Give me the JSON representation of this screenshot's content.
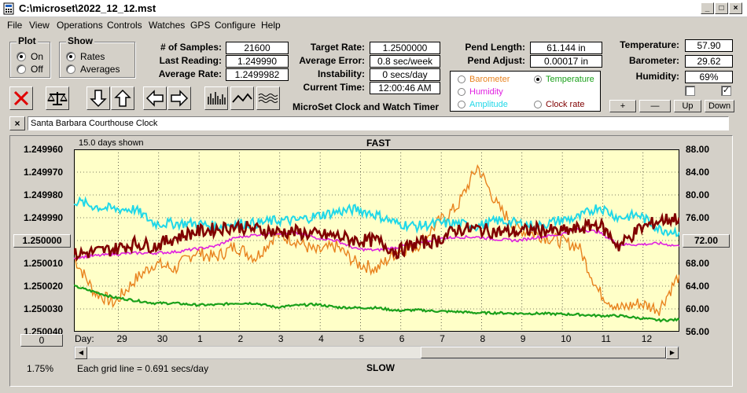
{
  "window": {
    "title": "C:\\microset\\2022_12_12.mst",
    "icon": "app-icon"
  },
  "menu": [
    "File",
    "View",
    "Operations",
    "Controls",
    "Watches",
    "GPS",
    "Configure",
    "Help"
  ],
  "plot": {
    "title": "Plot",
    "options": [
      {
        "label": "On",
        "selected": true
      },
      {
        "label": "Off",
        "selected": false
      }
    ]
  },
  "show": {
    "title": "Show",
    "options": [
      {
        "label": "Rates",
        "selected": true
      },
      {
        "label": "Averages",
        "selected": false
      }
    ]
  },
  "stats": {
    "samples_label": "# of Samples:",
    "samples": "21600",
    "last_reading_label": "Last Reading:",
    "last_reading": "1.249990",
    "average_rate_label": "Average Rate:",
    "average_rate": "1.2499982",
    "target_rate_label": "Target Rate:",
    "target_rate": "1.2500000",
    "average_error_label": "Average Error:",
    "average_error": "0.8 sec/week",
    "instability_label": "Instability:",
    "instability": "0 secs/day",
    "current_time_label": "Current Time:",
    "current_time": "12:00:46 AM",
    "pend_length_label": "Pend Length:",
    "pend_length": "61.144 in",
    "pend_adjust_label": "Pend Adjust:",
    "pend_adjust": "0.00017 in",
    "temperature_label": "Temperature:",
    "temperature": "57.90",
    "barometer_label": "Barometer:",
    "barometer": "29.62",
    "humidity_label": "Humidity:",
    "humidity": "69%"
  },
  "app_subtitle": "MicroSet Clock and Watch Timer",
  "legend": [
    {
      "label": "Barometer",
      "color": "#e8821e",
      "selected": false
    },
    {
      "label": "Temperature",
      "color": "#1aa01a",
      "selected": true
    },
    {
      "label": "Humidity",
      "color": "#e020e0",
      "selected": false
    },
    {
      "label": "Amplitude",
      "color": "#20d8e8",
      "selected": false
    },
    {
      "label": "Clock rate",
      "color": "#800000",
      "selected": false
    }
  ],
  "scale_buttons": [
    "+",
    "—",
    "Up",
    "Down"
  ],
  "checkboxes": [
    false,
    true
  ],
  "clock_name": "Santa Barbara Courthouse Clock",
  "chart": {
    "days_shown": "15.0 days shown",
    "top_label": "FAST",
    "bottom_label": "SLOW",
    "grid_note": "Each grid line = 0.691 secs/day",
    "percent": "1.75%",
    "day_label": "Day:",
    "left_center_button": "1.250000",
    "right_center_button": "72.00",
    "zero_button": "0"
  },
  "chart_data": {
    "type": "line",
    "y_left_ticks": [
      "1.249960",
      "1.249970",
      "1.249980",
      "1.249990",
      "1.250000",
      "1.250010",
      "1.250020",
      "1.250030",
      "1.250040"
    ],
    "y_right_ticks": [
      "88.00",
      "84.00",
      "80.00",
      "76.00",
      "72.00",
      "68.00",
      "64.00",
      "60.00",
      "56.00"
    ],
    "ylim_right": [
      56,
      88
    ],
    "x_ticks": [
      "29",
      "30",
      "1",
      "2",
      "3",
      "4",
      "5",
      "6",
      "7",
      "8",
      "9",
      "10",
      "11",
      "12"
    ],
    "x_tick_positions": [
      1.1,
      2.1,
      3.1,
      4.1,
      5.1,
      6.1,
      7.1,
      8.1,
      9.1,
      10.1,
      11.1,
      12.1,
      13.1,
      14.1
    ],
    "xlim": [
      0,
      15
    ],
    "grid": true,
    "series": [
      {
        "color": "#e8821e",
        "x": [
          0,
          0.5,
          1,
          1.5,
          2,
          2.5,
          3,
          3.5,
          4,
          4.5,
          5,
          5.5,
          6,
          6.5,
          7,
          7.5,
          8,
          8.5,
          9,
          9.5,
          10,
          10.5,
          11,
          11.5,
          12,
          12.5,
          13,
          13.5,
          14,
          14.5,
          15
        ],
        "y": [
          69,
          63,
          61,
          65,
          68,
          67,
          70,
          69,
          71,
          69,
          73,
          72,
          70,
          71,
          68,
          67,
          70,
          71,
          75,
          78,
          85,
          78,
          74,
          73,
          72,
          71,
          63,
          60,
          61,
          60,
          66
        ]
      },
      {
        "color": "#1aa01a",
        "x": [
          0,
          0.5,
          1,
          1.5,
          2,
          2.5,
          3,
          3.5,
          4,
          4.5,
          5,
          5.5,
          6,
          6.5,
          7,
          7.5,
          8,
          8.5,
          9,
          9.5,
          10,
          10.5,
          11,
          11.5,
          12,
          12.5,
          13,
          13.5,
          14,
          14.5,
          15
        ],
        "y": [
          64,
          63,
          62,
          61.5,
          61,
          61,
          60.7,
          60.7,
          61,
          61,
          60.3,
          60.6,
          60.8,
          60.3,
          60.2,
          60.2,
          59.7,
          59.8,
          59.6,
          59.5,
          59.3,
          59.3,
          59.2,
          59.2,
          59.1,
          59,
          58.8,
          58.8,
          58.4,
          58,
          58.1
        ]
      },
      {
        "color": "#e020e0",
        "x": [
          0,
          0.5,
          1,
          1.5,
          2,
          2.5,
          3,
          3.5,
          4,
          4.5,
          5,
          5.5,
          6,
          6.5,
          7,
          7.5,
          8,
          8.5,
          9,
          9.5,
          10,
          10.5,
          11,
          11.5,
          12,
          12.5,
          13,
          13.5,
          14,
          14.5,
          15
        ],
        "y": [
          69,
          69.3,
          69.6,
          69.8,
          69.8,
          70,
          70.5,
          71,
          72.5,
          73,
          73.3,
          73.3,
          72.5,
          72,
          70.5,
          70.3,
          70.8,
          71.5,
          72.3,
          72.6,
          72.6,
          72.2,
          72,
          72.6,
          73,
          74,
          73.5,
          71.3,
          71.3,
          71.5,
          71
        ]
      },
      {
        "color": "#20d8e8",
        "x": [
          0,
          0.5,
          1,
          1.5,
          2,
          2.5,
          3,
          3.5,
          4,
          4.5,
          5,
          5.5,
          6,
          6.5,
          7,
          7.5,
          8,
          8.5,
          9,
          9.5,
          10,
          10.5,
          11,
          11.5,
          12,
          12.5,
          13,
          13.5,
          14,
          14.5,
          15
        ],
        "y": [
          79,
          78,
          77.5,
          77.5,
          75,
          75,
          75,
          74.5,
          75,
          75,
          75.5,
          75.5,
          76.3,
          77,
          77.5,
          76.5,
          75,
          74.5,
          75,
          75,
          74.5,
          75.5,
          75,
          74.5,
          75.5,
          76,
          78,
          76,
          76.5,
          74,
          73.5
        ]
      },
      {
        "color": "#800000",
        "x": [
          0,
          0.5,
          1,
          1.5,
          2,
          2.5,
          3,
          3.5,
          4,
          4.5,
          5,
          5.5,
          6,
          6.5,
          7,
          7.5,
          8,
          8.5,
          9,
          9.5,
          10,
          10.5,
          11,
          11.5,
          12,
          12.5,
          13,
          13.5,
          14,
          14.5,
          15
        ],
        "y": [
          69.5,
          70,
          70.5,
          71.5,
          71,
          72.5,
          73.5,
          74,
          74.5,
          74,
          73.5,
          73.5,
          73,
          72.8,
          72,
          72,
          70,
          71.5,
          72,
          74,
          74,
          73.5,
          73.5,
          74,
          73.5,
          74,
          75,
          71,
          74,
          75.5,
          76
        ]
      }
    ]
  }
}
